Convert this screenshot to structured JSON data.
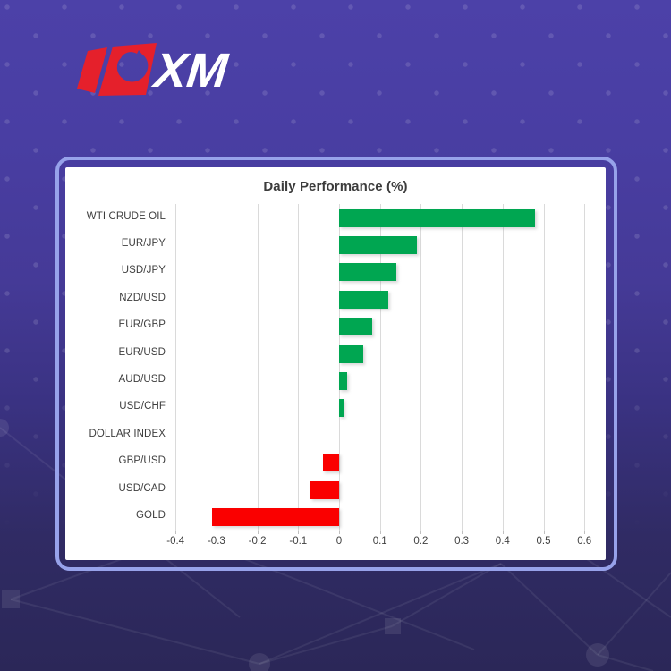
{
  "logo": {
    "text": "XM",
    "bull_color": "#e5202b",
    "text_color": "#ffffff"
  },
  "card": {
    "border_color": "#97a2ea",
    "panel_color": "#ffffff"
  },
  "chart_data": {
    "type": "bar",
    "orientation": "horizontal",
    "title": "Daily Performance (%)",
    "categories": [
      "WTI CRUDE OIL",
      "EUR/JPY",
      "USD/JPY",
      "NZD/USD",
      "EUR/GBP",
      "EUR/USD",
      "AUD/USD",
      "USD/CHF",
      "DOLLAR INDEX",
      "GBP/USD",
      "USD/CAD",
      "GOLD"
    ],
    "values": [
      0.48,
      0.19,
      0.14,
      0.12,
      0.08,
      0.06,
      0.02,
      0.01,
      0.0,
      -0.04,
      -0.07,
      -0.31
    ],
    "xlim": [
      -0.4,
      0.6
    ],
    "xticks": [
      -0.4,
      -0.3,
      -0.2,
      -0.1,
      0,
      0.1,
      0.2,
      0.3,
      0.4,
      0.5,
      0.6
    ],
    "xtick_labels": [
      "-0.4",
      "-0.3",
      "-0.2",
      "-0.1",
      "0",
      "0.1",
      "0.2",
      "0.3",
      "0.4",
      "0.5",
      "0.6"
    ],
    "positive_color": "#00a651",
    "negative_color": "#fa0000",
    "grid": true,
    "legend": "none",
    "label_color": "#3d3d3d",
    "gridline_color": "#dadada"
  }
}
